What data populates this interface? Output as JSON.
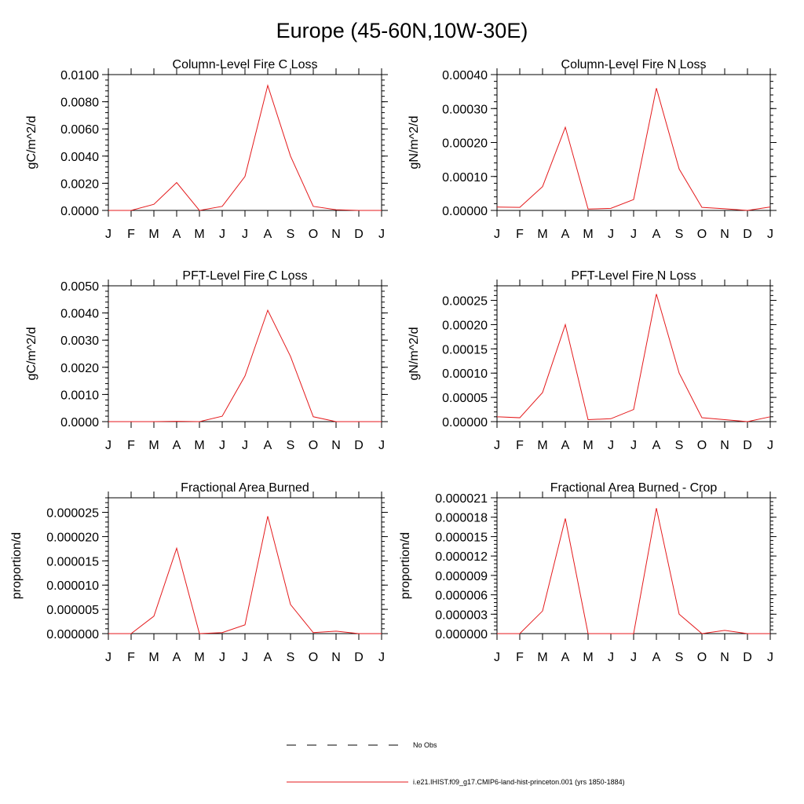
{
  "figure_title": "Europe (45-60N,10W-30E)",
  "legend": {
    "obs_label": "No Obs",
    "model_label": "i.e21.IHIST.f09_g17.CMIP6-land-hist-princeton.001 (yrs 1850-1884)",
    "model_color": "#e41a1c",
    "obs_color": "#000000"
  },
  "chart_data": [
    {
      "type": "line",
      "title": "Column-Level Fire C Loss",
      "ylabel": "gC/m^2/d",
      "x": [
        "J",
        "F",
        "M",
        "A",
        "M",
        "J",
        "J",
        "A",
        "S",
        "O",
        "N",
        "D",
        "J"
      ],
      "ylim": [
        0,
        0.01
      ],
      "yticks": [
        "0.0000",
        "0.0020",
        "0.0040",
        "0.0060",
        "0.0080",
        "0.0100"
      ],
      "yminor": 10,
      "series": [
        {
          "values": [
            0.0,
            0.0,
            0.00045,
            0.00205,
            0.0,
            0.0003,
            0.0025,
            0.0092,
            0.004,
            0.0003,
            5e-05,
            0.0,
            0.0
          ]
        }
      ]
    },
    {
      "type": "line",
      "title": "Column-Level Fire N Loss",
      "ylabel": "gN/m^2/d",
      "x": [
        "J",
        "F",
        "M",
        "A",
        "M",
        "J",
        "J",
        "A",
        "S",
        "O",
        "N",
        "D",
        "J"
      ],
      "ylim": [
        0,
        0.0004
      ],
      "yticks": [
        "0.00000",
        "0.00010",
        "0.00020",
        "0.00030",
        "0.00040"
      ],
      "yminor": 8,
      "series": [
        {
          "values": [
            1e-05,
            9e-06,
            7e-05,
            0.000245,
            4e-06,
            6e-06,
            3.2e-05,
            0.00036,
            0.000122,
            9e-06,
            5e-06,
            0.0,
            1e-05
          ]
        }
      ]
    },
    {
      "type": "line",
      "title": "PFT-Level Fire C Loss",
      "ylabel": "gC/m^2/d",
      "x": [
        "J",
        "F",
        "M",
        "A",
        "M",
        "J",
        "J",
        "A",
        "S",
        "O",
        "N",
        "D",
        "J"
      ],
      "ylim": [
        0,
        0.005
      ],
      "yticks": [
        "0.0000",
        "0.0010",
        "0.0020",
        "0.0030",
        "0.0040",
        "0.0050"
      ],
      "yminor": 10,
      "series": [
        {
          "values": [
            0.0,
            0.0,
            0.0,
            1e-05,
            0.0,
            0.0002,
            0.00168,
            0.0041,
            0.0024,
            0.00018,
            0.0,
            0.0,
            0.0
          ]
        }
      ]
    },
    {
      "type": "line",
      "title": "PFT-Level Fire N Loss",
      "ylabel": "gN/m^2/d",
      "x": [
        "J",
        "F",
        "M",
        "A",
        "M",
        "J",
        "J",
        "A",
        "S",
        "O",
        "N",
        "D",
        "J"
      ],
      "ylim": [
        0,
        0.00028
      ],
      "yticks": [
        "0.00000",
        "0.00005",
        "0.00010",
        "0.00015",
        "0.00020",
        "0.00025"
      ],
      "yminor": 11,
      "series": [
        {
          "values": [
            1e-05,
            8e-06,
            6e-05,
            0.0002,
            4e-06,
            6e-06,
            2.5e-05,
            0.000263,
            0.0001,
            8e-06,
            4e-06,
            0.0,
            1e-05
          ]
        }
      ]
    },
    {
      "type": "line",
      "title": "Fractional Area Burned",
      "ylabel": "proportion/d",
      "x": [
        "J",
        "F",
        "M",
        "A",
        "M",
        "J",
        "J",
        "A",
        "S",
        "O",
        "N",
        "D",
        "J"
      ],
      "ylim": [
        0,
        2.8e-05
      ],
      "yticks": [
        "0.000000",
        "0.000005",
        "0.000010",
        "0.000015",
        "0.000020",
        "0.000025"
      ],
      "yminor": 11,
      "series": [
        {
          "values": [
            0.0,
            0.0,
            3.6e-06,
            1.76e-05,
            0.0,
            2e-07,
            1.8e-06,
            2.42e-05,
            6e-06,
            2e-07,
            5e-07,
            0.0,
            0.0
          ]
        }
      ]
    },
    {
      "type": "line",
      "title": "Fractional Area Burned - Crop",
      "ylabel": "proportion/d",
      "x": [
        "J",
        "F",
        "M",
        "A",
        "M",
        "J",
        "J",
        "A",
        "S",
        "O",
        "N",
        "D",
        "J"
      ],
      "ylim": [
        0,
        2.1e-05
      ],
      "yticks": [
        "0.000000",
        "0.000003",
        "0.000006",
        "0.000009",
        "0.000012",
        "0.000015",
        "0.000018",
        "0.000021"
      ],
      "yminor": 14,
      "series": [
        {
          "values": [
            0.0,
            0.0,
            3.5e-06,
            1.78e-05,
            0.0,
            0.0,
            0.0,
            1.94e-05,
            3e-06,
            0.0,
            5e-07,
            0.0,
            0.0
          ]
        }
      ]
    }
  ]
}
